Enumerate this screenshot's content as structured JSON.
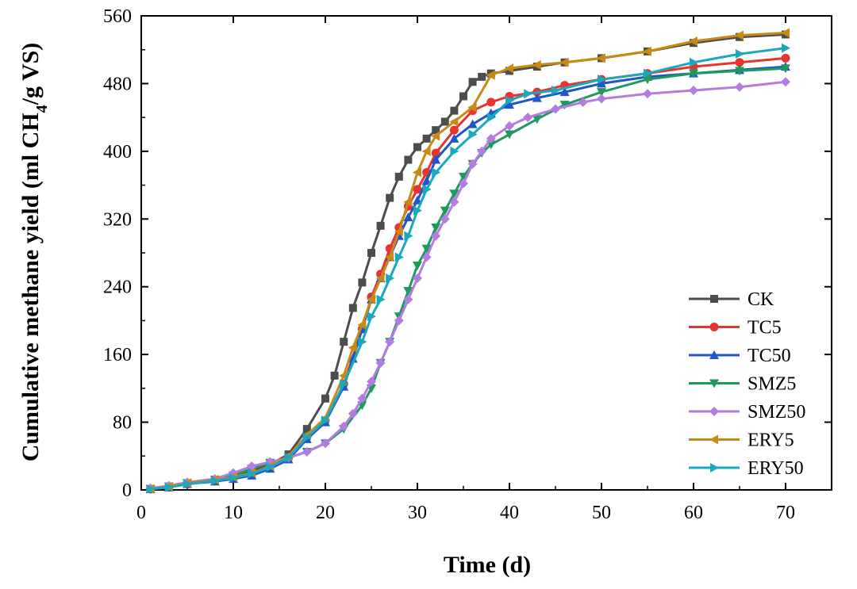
{
  "chart_data": {
    "type": "line",
    "title": "",
    "xlabel": "Time (d)",
    "ylabel_prefix": "Cumulative methane yield (ml CH",
    "ylabel_sub": "4",
    "ylabel_suffix": "/g VS)",
    "xlim": [
      0,
      75
    ],
    "ylim": [
      0,
      560
    ],
    "xticks": [
      0,
      10,
      20,
      30,
      40,
      50,
      60,
      70
    ],
    "yticks": [
      0,
      80,
      160,
      240,
      320,
      400,
      480,
      560
    ],
    "legend_position": "bottom-right",
    "grid": false,
    "series": [
      {
        "name": "CK",
        "color": "#4d4d4d",
        "marker": "square",
        "points": [
          [
            1,
            1
          ],
          [
            3,
            4
          ],
          [
            5,
            8
          ],
          [
            8,
            12
          ],
          [
            10,
            16
          ],
          [
            12,
            22
          ],
          [
            14,
            30
          ],
          [
            16,
            42
          ],
          [
            18,
            72
          ],
          [
            20,
            108
          ],
          [
            21,
            135
          ],
          [
            22,
            175
          ],
          [
            23,
            215
          ],
          [
            24,
            245
          ],
          [
            25,
            280
          ],
          [
            26,
            312
          ],
          [
            27,
            345
          ],
          [
            28,
            370
          ],
          [
            29,
            390
          ],
          [
            30,
            405
          ],
          [
            31,
            415
          ],
          [
            32,
            425
          ],
          [
            33,
            435
          ],
          [
            34,
            448
          ],
          [
            35,
            465
          ],
          [
            36,
            482
          ],
          [
            37,
            488
          ],
          [
            38,
            492
          ],
          [
            40,
            495
          ],
          [
            43,
            500
          ],
          [
            46,
            505
          ],
          [
            50,
            510
          ],
          [
            55,
            518
          ],
          [
            60,
            528
          ],
          [
            65,
            535
          ],
          [
            70,
            538
          ]
        ]
      },
      {
        "name": "TC5",
        "color": "#e8342e",
        "marker": "circle",
        "points": [
          [
            1,
            1
          ],
          [
            3,
            3
          ],
          [
            5,
            7
          ],
          [
            8,
            11
          ],
          [
            10,
            14
          ],
          [
            12,
            18
          ],
          [
            14,
            27
          ],
          [
            16,
            38
          ],
          [
            18,
            62
          ],
          [
            20,
            82
          ],
          [
            22,
            125
          ],
          [
            24,
            190
          ],
          [
            25,
            228
          ],
          [
            26,
            255
          ],
          [
            27,
            285
          ],
          [
            28,
            310
          ],
          [
            29,
            335
          ],
          [
            30,
            355
          ],
          [
            31,
            375
          ],
          [
            32,
            398
          ],
          [
            34,
            425
          ],
          [
            36,
            448
          ],
          [
            38,
            458
          ],
          [
            40,
            465
          ],
          [
            43,
            470
          ],
          [
            46,
            478
          ],
          [
            50,
            485
          ],
          [
            55,
            492
          ],
          [
            60,
            500
          ],
          [
            65,
            505
          ],
          [
            70,
            510
          ]
        ]
      },
      {
        "name": "TC50",
        "color": "#1f56c9",
        "marker": "triangle-up",
        "points": [
          [
            1,
            1
          ],
          [
            3,
            3
          ],
          [
            5,
            7
          ],
          [
            8,
            10
          ],
          [
            10,
            13
          ],
          [
            12,
            17
          ],
          [
            14,
            25
          ],
          [
            16,
            36
          ],
          [
            18,
            60
          ],
          [
            20,
            80
          ],
          [
            22,
            122
          ],
          [
            23,
            155
          ],
          [
            24,
            190
          ],
          [
            25,
            225
          ],
          [
            26,
            250
          ],
          [
            27,
            275
          ],
          [
            28,
            300
          ],
          [
            29,
            322
          ],
          [
            30,
            342
          ],
          [
            31,
            365
          ],
          [
            32,
            390
          ],
          [
            34,
            415
          ],
          [
            36,
            432
          ],
          [
            38,
            445
          ],
          [
            40,
            455
          ],
          [
            43,
            463
          ],
          [
            46,
            470
          ],
          [
            50,
            480
          ],
          [
            55,
            488
          ],
          [
            60,
            492
          ],
          [
            65,
            496
          ],
          [
            70,
            500
          ]
        ]
      },
      {
        "name": "SMZ5",
        "color": "#1f9a5e",
        "marker": "triangle-down",
        "points": [
          [
            1,
            1
          ],
          [
            3,
            4
          ],
          [
            5,
            8
          ],
          [
            8,
            12
          ],
          [
            10,
            17
          ],
          [
            12,
            25
          ],
          [
            14,
            32
          ],
          [
            16,
            38
          ],
          [
            18,
            45
          ],
          [
            20,
            55
          ],
          [
            22,
            72
          ],
          [
            24,
            100
          ],
          [
            25,
            120
          ],
          [
            26,
            150
          ],
          [
            27,
            175
          ],
          [
            28,
            205
          ],
          [
            29,
            235
          ],
          [
            30,
            265
          ],
          [
            31,
            285
          ],
          [
            32,
            310
          ],
          [
            33,
            330
          ],
          [
            34,
            350
          ],
          [
            35,
            370
          ],
          [
            36,
            385
          ],
          [
            37,
            398
          ],
          [
            38,
            408
          ],
          [
            40,
            420
          ],
          [
            43,
            438
          ],
          [
            46,
            455
          ],
          [
            50,
            470
          ],
          [
            55,
            485
          ],
          [
            60,
            492
          ],
          [
            65,
            495
          ],
          [
            70,
            498
          ]
        ]
      },
      {
        "name": "SMZ50",
        "color": "#b47be0",
        "marker": "diamond",
        "points": [
          [
            1,
            2
          ],
          [
            3,
            5
          ],
          [
            5,
            9
          ],
          [
            8,
            13
          ],
          [
            10,
            20
          ],
          [
            12,
            28
          ],
          [
            14,
            33
          ],
          [
            16,
            38
          ],
          [
            18,
            45
          ],
          [
            20,
            55
          ],
          [
            22,
            75
          ],
          [
            23,
            90
          ],
          [
            24,
            108
          ],
          [
            25,
            128
          ],
          [
            26,
            150
          ],
          [
            27,
            175
          ],
          [
            28,
            200
          ],
          [
            29,
            225
          ],
          [
            30,
            250
          ],
          [
            31,
            275
          ],
          [
            32,
            300
          ],
          [
            33,
            320
          ],
          [
            34,
            340
          ],
          [
            35,
            362
          ],
          [
            36,
            385
          ],
          [
            37,
            400
          ],
          [
            38,
            415
          ],
          [
            40,
            430
          ],
          [
            42,
            440
          ],
          [
            45,
            450
          ],
          [
            48,
            458
          ],
          [
            50,
            462
          ],
          [
            55,
            468
          ],
          [
            60,
            472
          ],
          [
            65,
            476
          ],
          [
            70,
            482
          ]
        ]
      },
      {
        "name": "ERY5",
        "color": "#c98a15",
        "marker": "triangle-left",
        "points": [
          [
            1,
            1
          ],
          [
            3,
            4
          ],
          [
            5,
            8
          ],
          [
            8,
            12
          ],
          [
            10,
            15
          ],
          [
            12,
            20
          ],
          [
            14,
            28
          ],
          [
            16,
            40
          ],
          [
            18,
            65
          ],
          [
            20,
            85
          ],
          [
            22,
            135
          ],
          [
            23,
            168
          ],
          [
            24,
            195
          ],
          [
            25,
            225
          ],
          [
            26,
            250
          ],
          [
            27,
            275
          ],
          [
            28,
            305
          ],
          [
            29,
            340
          ],
          [
            30,
            375
          ],
          [
            31,
            400
          ],
          [
            32,
            418
          ],
          [
            34,
            435
          ],
          [
            36,
            452
          ],
          [
            38,
            490
          ],
          [
            40,
            498
          ],
          [
            43,
            502
          ],
          [
            46,
            505
          ],
          [
            50,
            510
          ],
          [
            55,
            518
          ],
          [
            60,
            530
          ],
          [
            65,
            537
          ],
          [
            70,
            540
          ]
        ]
      },
      {
        "name": "ERY50",
        "color": "#1ba8bf",
        "marker": "triangle-right",
        "points": [
          [
            1,
            1
          ],
          [
            3,
            3
          ],
          [
            5,
            7
          ],
          [
            8,
            11
          ],
          [
            10,
            14
          ],
          [
            12,
            19
          ],
          [
            14,
            27
          ],
          [
            16,
            38
          ],
          [
            18,
            62
          ],
          [
            20,
            82
          ],
          [
            22,
            125
          ],
          [
            24,
            175
          ],
          [
            25,
            205
          ],
          [
            26,
            225
          ],
          [
            27,
            250
          ],
          [
            28,
            275
          ],
          [
            29,
            300
          ],
          [
            30,
            330
          ],
          [
            31,
            355
          ],
          [
            32,
            375
          ],
          [
            34,
            400
          ],
          [
            36,
            420
          ],
          [
            38,
            440
          ],
          [
            40,
            460
          ],
          [
            42,
            468
          ],
          [
            45,
            472
          ],
          [
            50,
            485
          ],
          [
            55,
            492
          ],
          [
            60,
            505
          ],
          [
            65,
            515
          ],
          [
            70,
            522
          ]
        ]
      }
    ]
  }
}
